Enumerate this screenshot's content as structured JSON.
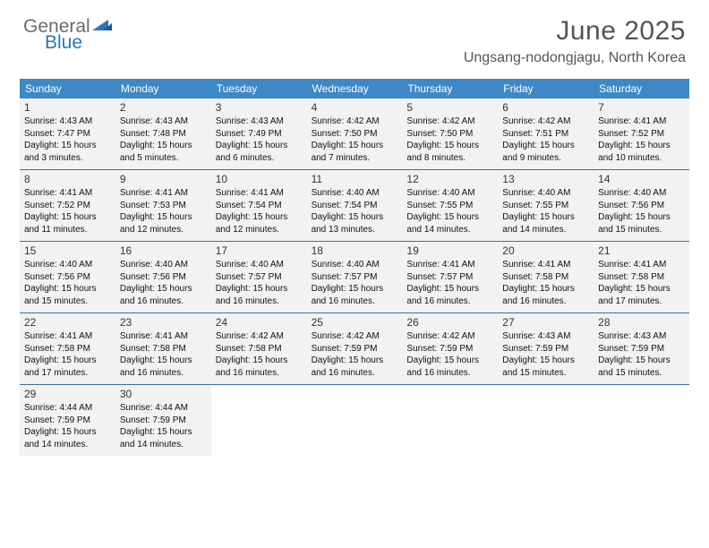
{
  "logo": {
    "text1": "General",
    "text2": "Blue"
  },
  "title": "June 2025",
  "location": "Ungsang-nodongjagu, North Korea",
  "daynames": [
    "Sunday",
    "Monday",
    "Tuesday",
    "Wednesday",
    "Thursday",
    "Friday",
    "Saturday"
  ],
  "header_bg": "#3d88c6",
  "cell_bg": "#f2f2f2",
  "rule_color": "#3d6f9c",
  "title_color": "#555555",
  "font_family": "Arial",
  "days": [
    {
      "n": "1",
      "sr": "4:43 AM",
      "ss": "7:47 PM",
      "dl": "15 hours and 3 minutes."
    },
    {
      "n": "2",
      "sr": "4:43 AM",
      "ss": "7:48 PM",
      "dl": "15 hours and 5 minutes."
    },
    {
      "n": "3",
      "sr": "4:43 AM",
      "ss": "7:49 PM",
      "dl": "15 hours and 6 minutes."
    },
    {
      "n": "4",
      "sr": "4:42 AM",
      "ss": "7:50 PM",
      "dl": "15 hours and 7 minutes."
    },
    {
      "n": "5",
      "sr": "4:42 AM",
      "ss": "7:50 PM",
      "dl": "15 hours and 8 minutes."
    },
    {
      "n": "6",
      "sr": "4:42 AM",
      "ss": "7:51 PM",
      "dl": "15 hours and 9 minutes."
    },
    {
      "n": "7",
      "sr": "4:41 AM",
      "ss": "7:52 PM",
      "dl": "15 hours and 10 minutes."
    },
    {
      "n": "8",
      "sr": "4:41 AM",
      "ss": "7:52 PM",
      "dl": "15 hours and 11 minutes."
    },
    {
      "n": "9",
      "sr": "4:41 AM",
      "ss": "7:53 PM",
      "dl": "15 hours and 12 minutes."
    },
    {
      "n": "10",
      "sr": "4:41 AM",
      "ss": "7:54 PM",
      "dl": "15 hours and 12 minutes."
    },
    {
      "n": "11",
      "sr": "4:40 AM",
      "ss": "7:54 PM",
      "dl": "15 hours and 13 minutes."
    },
    {
      "n": "12",
      "sr": "4:40 AM",
      "ss": "7:55 PM",
      "dl": "15 hours and 14 minutes."
    },
    {
      "n": "13",
      "sr": "4:40 AM",
      "ss": "7:55 PM",
      "dl": "15 hours and 14 minutes."
    },
    {
      "n": "14",
      "sr": "4:40 AM",
      "ss": "7:56 PM",
      "dl": "15 hours and 15 minutes."
    },
    {
      "n": "15",
      "sr": "4:40 AM",
      "ss": "7:56 PM",
      "dl": "15 hours and 15 minutes."
    },
    {
      "n": "16",
      "sr": "4:40 AM",
      "ss": "7:56 PM",
      "dl": "15 hours and 16 minutes."
    },
    {
      "n": "17",
      "sr": "4:40 AM",
      "ss": "7:57 PM",
      "dl": "15 hours and 16 minutes."
    },
    {
      "n": "18",
      "sr": "4:40 AM",
      "ss": "7:57 PM",
      "dl": "15 hours and 16 minutes."
    },
    {
      "n": "19",
      "sr": "4:41 AM",
      "ss": "7:57 PM",
      "dl": "15 hours and 16 minutes."
    },
    {
      "n": "20",
      "sr": "4:41 AM",
      "ss": "7:58 PM",
      "dl": "15 hours and 16 minutes."
    },
    {
      "n": "21",
      "sr": "4:41 AM",
      "ss": "7:58 PM",
      "dl": "15 hours and 17 minutes."
    },
    {
      "n": "22",
      "sr": "4:41 AM",
      "ss": "7:58 PM",
      "dl": "15 hours and 17 minutes."
    },
    {
      "n": "23",
      "sr": "4:41 AM",
      "ss": "7:58 PM",
      "dl": "15 hours and 16 minutes."
    },
    {
      "n": "24",
      "sr": "4:42 AM",
      "ss": "7:58 PM",
      "dl": "15 hours and 16 minutes."
    },
    {
      "n": "25",
      "sr": "4:42 AM",
      "ss": "7:59 PM",
      "dl": "15 hours and 16 minutes."
    },
    {
      "n": "26",
      "sr": "4:42 AM",
      "ss": "7:59 PM",
      "dl": "15 hours and 16 minutes."
    },
    {
      "n": "27",
      "sr": "4:43 AM",
      "ss": "7:59 PM",
      "dl": "15 hours and 15 minutes."
    },
    {
      "n": "28",
      "sr": "4:43 AM",
      "ss": "7:59 PM",
      "dl": "15 hours and 15 minutes."
    },
    {
      "n": "29",
      "sr": "4:44 AM",
      "ss": "7:59 PM",
      "dl": "15 hours and 14 minutes."
    },
    {
      "n": "30",
      "sr": "4:44 AM",
      "ss": "7:59 PM",
      "dl": "15 hours and 14 minutes."
    }
  ],
  "labels": {
    "sunrise": "Sunrise: ",
    "sunset": "Sunset: ",
    "daylight": "Daylight: "
  }
}
